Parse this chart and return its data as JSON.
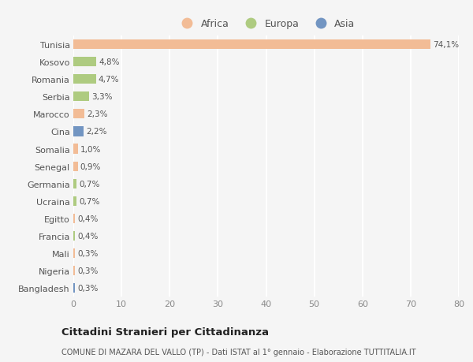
{
  "categories": [
    "Tunisia",
    "Kosovo",
    "Romania",
    "Serbia",
    "Marocco",
    "Cina",
    "Somalia",
    "Senegal",
    "Germania",
    "Ucraina",
    "Egitto",
    "Francia",
    "Mali",
    "Nigeria",
    "Bangladesh"
  ],
  "values": [
    74.1,
    4.8,
    4.7,
    3.3,
    2.3,
    2.2,
    1.0,
    0.9,
    0.7,
    0.7,
    0.4,
    0.4,
    0.3,
    0.3,
    0.3
  ],
  "labels": [
    "74,1%",
    "4,8%",
    "4,7%",
    "3,3%",
    "2,3%",
    "2,2%",
    "1,0%",
    "0,9%",
    "0,7%",
    "0,7%",
    "0,4%",
    "0,4%",
    "0,3%",
    "0,3%",
    "0,3%"
  ],
  "colors": [
    "#f2bc96",
    "#aecb80",
    "#aecb80",
    "#aecb80",
    "#f2bc96",
    "#7295c2",
    "#f2bc96",
    "#f2bc96",
    "#aecb80",
    "#aecb80",
    "#f2bc96",
    "#aecb80",
    "#f2bc96",
    "#f2bc96",
    "#7295c2"
  ],
  "legend": [
    {
      "label": "Africa",
      "color": "#f2bc96"
    },
    {
      "label": "Europa",
      "color": "#aecb80"
    },
    {
      "label": "Asia",
      "color": "#7295c2"
    }
  ],
  "xlim": [
    0,
    80
  ],
  "xticks": [
    0,
    10,
    20,
    30,
    40,
    50,
    60,
    70,
    80
  ],
  "title": "Cittadini Stranieri per Cittadinanza",
  "subtitle": "COMUNE DI MAZARA DEL VALLO (TP) - Dati ISTAT al 1° gennaio - Elaborazione TUTTITALIA.IT",
  "bg_color": "#f5f5f5",
  "grid_color": "#ffffff",
  "bar_height": 0.55
}
